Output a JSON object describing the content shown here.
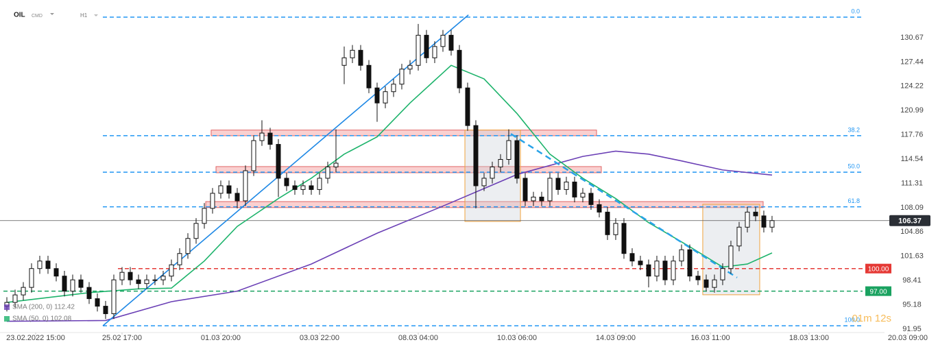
{
  "chart_data": {
    "type": "candlestick",
    "instrument": "OIL",
    "market": "CMD",
    "interval": "H1",
    "open": [
      95,
      95.5,
      96.5,
      97.5,
      100,
      101,
      100,
      99,
      97,
      98.5,
      97.5,
      96,
      95,
      94,
      98.5,
      99.5,
      98.5,
      98,
      98.5,
      98.5,
      99,
      100.5,
      102,
      104,
      106,
      108,
      110,
      111,
      110,
      109,
      113,
      117,
      118,
      116.5,
      112,
      111,
      110.5,
      111,
      110.5,
      112,
      113.5,
      127,
      128,
      129,
      127,
      124,
      122,
      123.5,
      124.5,
      126.5,
      127,
      131,
      128,
      129.5,
      131,
      129,
      124,
      119,
      111,
      112,
      113.5,
      114.5,
      117,
      112,
      109,
      109.5,
      109,
      112,
      110.5,
      111.5,
      109.5,
      110,
      108.5,
      107.5,
      104.5,
      106,
      102,
      101,
      100.5,
      99,
      101,
      98.5,
      101,
      102.5,
      99,
      98.5,
      97.5,
      98.5,
      100,
      103,
      105.5,
      107.5,
      107,
      105.5
    ],
    "high": [
      96.2,
      97.2,
      98.2,
      100.7,
      101.7,
      101.7,
      100.7,
      99.7,
      99.2,
      99.2,
      98.2,
      96.7,
      95.7,
      99.2,
      100.2,
      100.2,
      99.2,
      99.2,
      99.2,
      99.7,
      101.2,
      102.7,
      104.7,
      106.7,
      108.7,
      110.7,
      111.7,
      111.7,
      110.7,
      113.7,
      117.7,
      119.7,
      118.7,
      117.2,
      112.7,
      111.7,
      111.7,
      111.7,
      112.7,
      114.2,
      118.5,
      129.5,
      129.7,
      129.7,
      127.7,
      124.7,
      124.2,
      125.2,
      127.2,
      127.7,
      132.5,
      131.7,
      130.2,
      131.7,
      131.7,
      129.7,
      124.7,
      119.7,
      112.7,
      114.2,
      115.2,
      118.5,
      117.7,
      112.7,
      110.2,
      110.2,
      112.7,
      112.7,
      112.2,
      112.2,
      110.7,
      110.7,
      109.2,
      108.2,
      106.7,
      106.7,
      102.7,
      101.7,
      101.2,
      101.7,
      101.7,
      101.7,
      103.2,
      103.2,
      99.7,
      99.2,
      99.2,
      100.7,
      103.7,
      106.2,
      108.2,
      108.2,
      107.7,
      107
    ],
    "low": [
      94.3,
      94.8,
      95.8,
      96.8,
      99.3,
      99.3,
      98.3,
      96.3,
      96.3,
      96.8,
      95.3,
      94.3,
      93.3,
      93.3,
      97.8,
      97.8,
      97.3,
      97.3,
      97.8,
      97.8,
      98.3,
      99.8,
      101.3,
      103.3,
      105.3,
      107.3,
      109.3,
      109.3,
      108,
      108.3,
      112.3,
      116.3,
      115.8,
      109.5,
      110.3,
      109.8,
      109.8,
      109.8,
      109.8,
      111.3,
      112.8,
      124.5,
      127.3,
      126.3,
      123.3,
      119.5,
      121.3,
      122.8,
      123.8,
      125.8,
      126.3,
      127.3,
      127.3,
      128.8,
      128.3,
      123.3,
      118.3,
      108,
      110.3,
      111.3,
      112.8,
      113.8,
      111.3,
      108.3,
      108.3,
      108.3,
      108.3,
      109.8,
      109.8,
      108.8,
      108.8,
      107.8,
      106.8,
      103.8,
      103.8,
      101.3,
      100.3,
      99.8,
      97.5,
      98.3,
      97.8,
      97.8,
      100.3,
      98.3,
      97.8,
      97,
      96.8,
      97.8,
      99.3,
      102.3,
      104.8,
      106.3,
      104.8,
      104.8
    ],
    "close": [
      95.5,
      96.5,
      97.5,
      100,
      101,
      100,
      99,
      97,
      98.5,
      97.5,
      96,
      95,
      94,
      98.5,
      99.5,
      98.5,
      98,
      98.5,
      98.5,
      99,
      100.5,
      102,
      104,
      106,
      108,
      110,
      111,
      110,
      109,
      113,
      117,
      118,
      116.5,
      112,
      111,
      110.5,
      111,
      110.5,
      112,
      113.5,
      114,
      128,
      129,
      127,
      124,
      122,
      123.5,
      124.5,
      126.5,
      127,
      131,
      128,
      129.5,
      131,
      129,
      124,
      119,
      111,
      112,
      113.5,
      114.5,
      117,
      112,
      109,
      109.5,
      109,
      112,
      110.5,
      111.5,
      109.5,
      110,
      108.5,
      107.5,
      104.5,
      106,
      102,
      101,
      100.5,
      99,
      101,
      98.5,
      101,
      102.5,
      99,
      98.5,
      97.5,
      98.5,
      100,
      103,
      105.5,
      107.5,
      107,
      105.5,
      106.37
    ],
    "colors": {
      "up": "#ffffff",
      "down": "#111111",
      "wick": "#111111"
    },
    "xlim": [
      -0.5,
      113.17
    ],
    "xticks": [
      {
        "value": 3.5,
        "label": "23.02.2022 15:00"
      },
      {
        "value": 14,
        "label": "25.02 17:00"
      },
      {
        "value": 26,
        "label": "01.03 20:00"
      },
      {
        "value": 38,
        "label": "03.03 22:00"
      },
      {
        "value": 50,
        "label": "08.03 04:00"
      },
      {
        "value": 62,
        "label": "10.03 06:00"
      },
      {
        "value": 74,
        "label": "14.03 09:00"
      },
      {
        "value": 85.5,
        "label": "16.03 11:00"
      },
      {
        "value": 97.5,
        "label": "18.03 13:00"
      },
      {
        "value": 109.5,
        "label": "20.03 09:00"
      }
    ],
    "ylim": [
      91.5,
      135.68
    ],
    "yticks": [
      130.67,
      127.44,
      124.22,
      120.99,
      117.76,
      114.54,
      111.31,
      108.09,
      104.86,
      101.63,
      98.41,
      95.18,
      91.95
    ],
    "series": [
      {
        "name": "SMA (200, 0) 112.42",
        "color": "#6a3fb5",
        "x": [
          0,
          12,
          20,
          28,
          37,
          45,
          53,
          62,
          70,
          74,
          78,
          82,
          87,
          93
        ],
        "values": [
          93,
          93.1,
          95.6,
          97,
          100.6,
          104.7,
          108.3,
          112.5,
          114.9,
          115.6,
          115.2,
          114.3,
          113.1,
          112.42
        ]
      },
      {
        "name": "SMA (50, 0) 102.08",
        "color": "#1db36b",
        "x": [
          0,
          10,
          16,
          20,
          24,
          28,
          33,
          37,
          41,
          45,
          49,
          54,
          58,
          62,
          66,
          70,
          74,
          78,
          83,
          87,
          90,
          93
        ],
        "values": [
          95.5,
          96.8,
          97.3,
          97.4,
          101,
          105.6,
          109.3,
          112,
          115.2,
          117.5,
          122,
          127,
          125.2,
          120.6,
          115.2,
          112,
          109.3,
          106.1,
          102.9,
          100.2,
          100.6,
          102.08
        ]
      }
    ],
    "fib_levels": [
      {
        "value": 133.4,
        "label": "0.0"
      },
      {
        "value": 117.65,
        "label": "38.2"
      },
      {
        "value": 112.8,
        "label": "50.0"
      },
      {
        "value": 108.2,
        "label": "61.8"
      },
      {
        "value": 92.4,
        "label": "100.0"
      }
    ],
    "fib_color": "#2196f3",
    "levels": [
      {
        "value": 100,
        "label": "100.00",
        "color": "#e53935"
      },
      {
        "value": 97,
        "label": "97.00",
        "color": "#1aa260"
      }
    ],
    "current_price": 106.37,
    "trendlines": [
      {
        "x": [
          11.67,
          56.1
        ],
        "y": [
          92.4,
          133.7
        ],
        "dashed": false,
        "color": "#1e88e5"
      },
      {
        "x": [
          61.25,
          88.75
        ],
        "y": [
          117.9,
          98.8
        ],
        "dashed": true,
        "color": "#29a3e8"
      }
    ],
    "zones": [
      {
        "x": [
          24.83,
          71.67
        ],
        "y": [
          117.65,
          118.4
        ]
      },
      {
        "x": [
          25.42,
          72.25
        ],
        "y": [
          112.73,
          113.55
        ]
      },
      {
        "x": [
          24.17,
          91.92
        ],
        "y": [
          108.1,
          108.9
        ]
      }
    ],
    "boxes": [
      {
        "x": [
          55.67,
          62.42
        ],
        "y": [
          106.26,
          118.4
        ]
      },
      {
        "x": [
          84.58,
          91.5
        ],
        "y": [
          96.52,
          108.54
        ]
      }
    ],
    "countdown": "01m 12s"
  }
}
